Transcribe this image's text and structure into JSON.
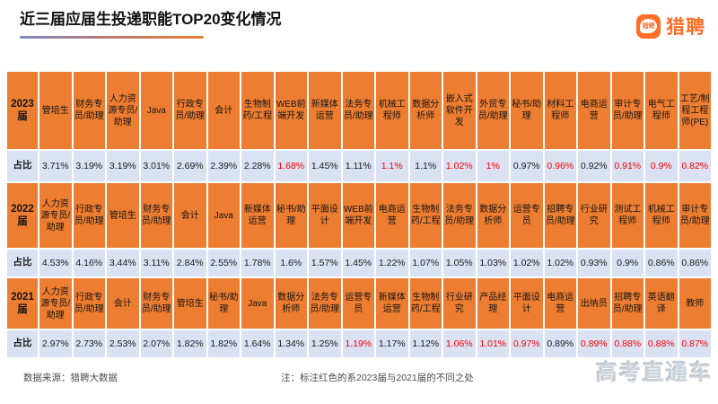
{
  "header": {
    "title": "近三届应届生投递职能TOP20变化情况",
    "logo_text": "猎聘",
    "logo_bubble_text": "猎聘"
  },
  "colors": {
    "job_cell_bg": "#ED7D31",
    "ratio_cell_bg": "#D9E1F2",
    "highlight_red": "#FF0000",
    "brand_orange": "#FE6E26"
  },
  "table": {
    "rows": [
      {
        "label": "2023届",
        "kind": "jobs",
        "cells": [
          {
            "text": "管培生",
            "red": false
          },
          {
            "text": "财务专员/助理",
            "red": false
          },
          {
            "text": "人力资源专员/助理",
            "red": false
          },
          {
            "text": "Java",
            "red": false
          },
          {
            "text": "行政专员/助理",
            "red": false
          },
          {
            "text": "会计",
            "red": false
          },
          {
            "text": "生物制药/工程",
            "red": false
          },
          {
            "text": "WEB前端开发",
            "red": false
          },
          {
            "text": "新媒体运营",
            "red": false
          },
          {
            "text": "法务专员/助理",
            "red": false
          },
          {
            "text": "机械工程师",
            "red": false
          },
          {
            "text": "数据分析师",
            "red": false
          },
          {
            "text": "嵌入式软件开发",
            "red": false
          },
          {
            "text": "外贸专员/助理",
            "red": false
          },
          {
            "text": "秘书/助理",
            "red": false
          },
          {
            "text": "材料工程师",
            "red": false
          },
          {
            "text": "电商运营",
            "red": false
          },
          {
            "text": "审计专员/助理",
            "red": false
          },
          {
            "text": "电气工程师",
            "red": false
          },
          {
            "text": "工艺/制程工程师(PE)",
            "red": false
          }
        ]
      },
      {
        "label": "占比",
        "kind": "ratio",
        "cells": [
          {
            "text": "3.71%",
            "red": false
          },
          {
            "text": "3.19%",
            "red": false
          },
          {
            "text": "3.19%",
            "red": false
          },
          {
            "text": "3.01%",
            "red": false
          },
          {
            "text": "2.69%",
            "red": false
          },
          {
            "text": "2.39%",
            "red": false
          },
          {
            "text": "2.28%",
            "red": false
          },
          {
            "text": "1.68%",
            "red": true
          },
          {
            "text": "1.45%",
            "red": false
          },
          {
            "text": "1.11%",
            "red": false
          },
          {
            "text": "1.1%",
            "red": true
          },
          {
            "text": "1.1%",
            "red": false
          },
          {
            "text": "1.02%",
            "red": true
          },
          {
            "text": "1%",
            "red": true
          },
          {
            "text": "0.97%",
            "red": false
          },
          {
            "text": "0.96%",
            "red": true
          },
          {
            "text": "0.92%",
            "red": false
          },
          {
            "text": "0.91%",
            "red": true
          },
          {
            "text": "0.9%",
            "red": true
          },
          {
            "text": "0.82%",
            "red": true
          }
        ]
      },
      {
        "label": "2022届",
        "kind": "jobs",
        "cells": [
          {
            "text": "人力资源专员/助理",
            "red": false
          },
          {
            "text": "行政专员/助理",
            "red": false
          },
          {
            "text": "管培生",
            "red": false
          },
          {
            "text": "财务专员/助理",
            "red": false
          },
          {
            "text": "会计",
            "red": false
          },
          {
            "text": "Java",
            "red": false
          },
          {
            "text": "新媒体运营",
            "red": false
          },
          {
            "text": "秘书/助理",
            "red": false
          },
          {
            "text": "平面设计",
            "red": false
          },
          {
            "text": "WEB前端开发",
            "red": false
          },
          {
            "text": "电商运营",
            "red": false
          },
          {
            "text": "生物制药/工程",
            "red": false
          },
          {
            "text": "法务专员/助理",
            "red": false
          },
          {
            "text": "数据分析师",
            "red": false
          },
          {
            "text": "运营专员",
            "red": false
          },
          {
            "text": "招聘专员/助理",
            "red": false
          },
          {
            "text": "行业研究",
            "red": false
          },
          {
            "text": "测试工程师",
            "red": false
          },
          {
            "text": "机械工程师",
            "red": false
          },
          {
            "text": "审计专员/助理",
            "red": false
          }
        ]
      },
      {
        "label": "占比",
        "kind": "ratio",
        "cells": [
          {
            "text": "4.53%",
            "red": false
          },
          {
            "text": "4.16%",
            "red": false
          },
          {
            "text": "3.44%",
            "red": false
          },
          {
            "text": "3.11%",
            "red": false
          },
          {
            "text": "2.84%",
            "red": false
          },
          {
            "text": "2.55%",
            "red": false
          },
          {
            "text": "1.78%",
            "red": false
          },
          {
            "text": "1.6%",
            "red": false
          },
          {
            "text": "1.57%",
            "red": false
          },
          {
            "text": "1.45%",
            "red": false
          },
          {
            "text": "1.22%",
            "red": false
          },
          {
            "text": "1.07%",
            "red": false
          },
          {
            "text": "1.05%",
            "red": false
          },
          {
            "text": "1.03%",
            "red": false
          },
          {
            "text": "1.02%",
            "red": false
          },
          {
            "text": "1.02%",
            "red": false
          },
          {
            "text": "0.93%",
            "red": false
          },
          {
            "text": "0.9%",
            "red": false
          },
          {
            "text": "0.86%",
            "red": false
          },
          {
            "text": "0.86%",
            "red": false
          }
        ]
      },
      {
        "label": "2021届",
        "kind": "jobs",
        "cells": [
          {
            "text": "人力资源专员/助理",
            "red": false
          },
          {
            "text": "行政专员/助理",
            "red": false
          },
          {
            "text": "会计",
            "red": false
          },
          {
            "text": "财务专员/助理",
            "red": false
          },
          {
            "text": "管培生",
            "red": false
          },
          {
            "text": "秘书/助理",
            "red": false
          },
          {
            "text": "Java",
            "red": false
          },
          {
            "text": "数据分析师",
            "red": false
          },
          {
            "text": "法务专员/助理",
            "red": false
          },
          {
            "text": "运营专员",
            "red": false
          },
          {
            "text": "新媒体运营",
            "red": false
          },
          {
            "text": "生物制药/工程",
            "red": false
          },
          {
            "text": "行业研究",
            "red": false
          },
          {
            "text": "产品经理",
            "red": false
          },
          {
            "text": "平面设计",
            "red": false
          },
          {
            "text": "电商运营",
            "red": false
          },
          {
            "text": "出纳员",
            "red": false
          },
          {
            "text": "招聘专员/助理",
            "red": false
          },
          {
            "text": "英语翻译",
            "red": false
          },
          {
            "text": "教师",
            "red": false
          }
        ]
      },
      {
        "label": "占比",
        "kind": "ratio",
        "cells": [
          {
            "text": "2.97%",
            "red": false
          },
          {
            "text": "2.73%",
            "red": false
          },
          {
            "text": "2.53%",
            "red": false
          },
          {
            "text": "2.07%",
            "red": false
          },
          {
            "text": "1.82%",
            "red": false
          },
          {
            "text": "1.82%",
            "red": false
          },
          {
            "text": "1.64%",
            "red": false
          },
          {
            "text": "1.34%",
            "red": false
          },
          {
            "text": "1.25%",
            "red": false
          },
          {
            "text": "1.19%",
            "red": true
          },
          {
            "text": "1.17%",
            "red": false
          },
          {
            "text": "1.12%",
            "red": false
          },
          {
            "text": "1.06%",
            "red": true
          },
          {
            "text": "1.01%",
            "red": true
          },
          {
            "text": "0.97%",
            "red": true
          },
          {
            "text": "0.89%",
            "red": false
          },
          {
            "text": "0.89%",
            "red": true
          },
          {
            "text": "0.88%",
            "red": true
          },
          {
            "text": "0.88%",
            "red": true
          },
          {
            "text": "0.87%",
            "red": true
          }
        ]
      }
    ]
  },
  "footer": {
    "source": "数据来源：猎聘大数据",
    "note": "注：标注红色的系2023届与2021届的不同之处",
    "watermark": "高考直通车"
  }
}
